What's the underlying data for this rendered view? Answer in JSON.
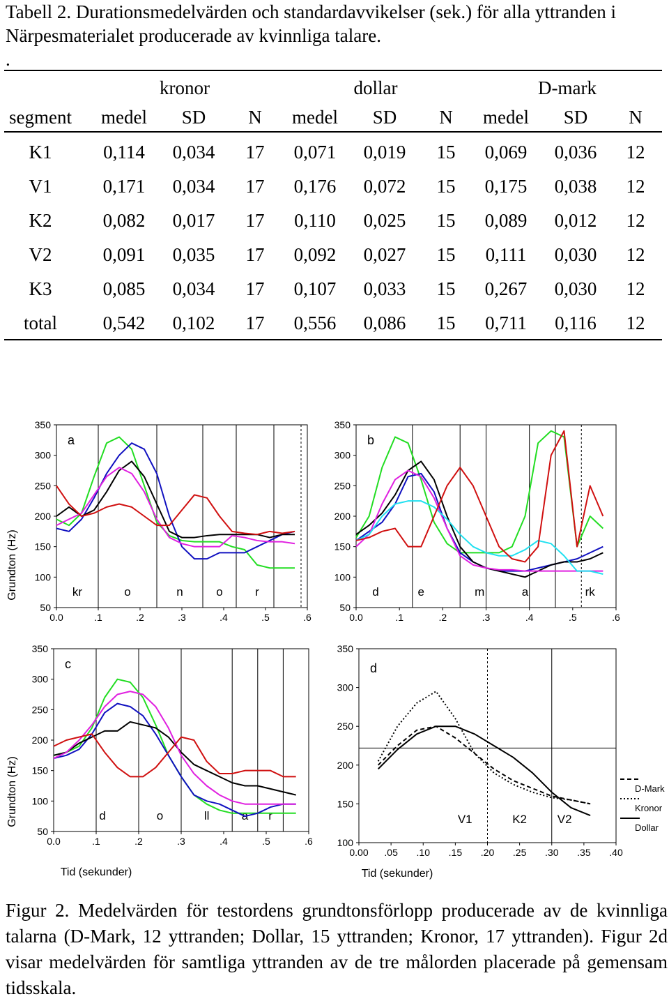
{
  "table_caption": "Tabell 2. Durationsmedelvärden och standardavvikelser (sek.) för alla yttranden i Närpesmaterialet producerade av kvinnliga talare.",
  "table_mark": ".",
  "table": {
    "groups": [
      "kronor",
      "dollar",
      "D-mark"
    ],
    "columns": [
      "segment",
      "medel",
      "SD",
      "N",
      "medel",
      "SD",
      "N",
      "medel",
      "SD",
      "N"
    ],
    "rows": [
      [
        "K1",
        "0,114",
        "0,034",
        "17",
        "0,071",
        "0,019",
        "15",
        "0,069",
        "0,036",
        "12"
      ],
      [
        "V1",
        "0,171",
        "0,034",
        "17",
        "0,176",
        "0,072",
        "15",
        "0,175",
        "0,038",
        "12"
      ],
      [
        "K2",
        "0,082",
        "0,017",
        "17",
        "0,110",
        "0,025",
        "15",
        "0,089",
        "0,012",
        "12"
      ],
      [
        "V2",
        "0,091",
        "0,035",
        "17",
        "0,092",
        "0,027",
        "15",
        "0,111",
        "0,030",
        "12"
      ],
      [
        "K3",
        "0,085",
        "0,034",
        "17",
        "0,107",
        "0,033",
        "15",
        "0,267",
        "0,030",
        "12"
      ],
      [
        "total",
        "0,542",
        "0,102",
        "17",
        "0,556",
        "0,086",
        "15",
        "0,711",
        "0,116",
        "12"
      ]
    ]
  },
  "figure": {
    "ylabel": "Grundton (Hz)",
    "xlabel": "Tid (sekunder)",
    "yticks": [
      "350",
      "300",
      "250",
      "200",
      "150",
      "100",
      "50"
    ],
    "yticks_d": [
      "350",
      "300",
      "250",
      "200",
      "150",
      "100"
    ],
    "xticks": [
      "0.0",
      ".1",
      ".2",
      ".3",
      ".4",
      ".5",
      ".6"
    ],
    "xticks_d": [
      "0.00",
      ".05",
      ".10",
      ".15",
      ".20",
      ".25",
      ".30",
      ".35",
      ".40"
    ],
    "panels": [
      {
        "label": "a",
        "segments": [
          "kr",
          "o",
          "n",
          "o",
          "r"
        ]
      },
      {
        "label": "b",
        "segments": [
          "d",
          "e",
          "m",
          "a",
          "rk"
        ]
      },
      {
        "label": "c",
        "segments": [
          "d",
          "o",
          "ll",
          "a",
          "r"
        ]
      },
      {
        "label": "d",
        "segments": [
          "V1",
          "K2",
          "V2"
        ]
      }
    ],
    "legend": [
      "D-Mark",
      "Kronor",
      "Dollar"
    ],
    "colors": {
      "green": "#22dd22",
      "blue": "#1010c0",
      "black": "#000000",
      "magenta": "#e020e0",
      "red": "#d01010",
      "cyan": "#20e0f0"
    }
  },
  "figure_caption": "Figur 2. Medelvärden för testordens grundtonsförlopp producerade av de kvinnliga talarna (D-Mark, 12 yttranden; Dollar, 15 yttranden; Kronor, 17 yttranden). Figur 2d visar medelvärden för samtliga yttranden av de tre målorden placerade på gemensam tidsskala.",
  "chart_data": [
    {
      "type": "line",
      "title": "a",
      "xlabel": "",
      "ylabel": "Grundton (Hz)",
      "xlim": [
        0.0,
        0.6
      ],
      "ylim": [
        50,
        350
      ],
      "boundaries": [
        0.1,
        0.24,
        0.35,
        0.43,
        0.52,
        0.585
      ],
      "series": [
        {
          "color": "#22dd22",
          "x": [
            0.0,
            0.03,
            0.06,
            0.09,
            0.12,
            0.15,
            0.18,
            0.21,
            0.24,
            0.27,
            0.3,
            0.33,
            0.36,
            0.39,
            0.42,
            0.45,
            0.48,
            0.51,
            0.54,
            0.57
          ],
          "y": [
            195,
            185,
            205,
            265,
            320,
            330,
            310,
            250,
            190,
            168,
            160,
            158,
            158,
            158,
            150,
            145,
            120,
            115,
            115,
            115
          ]
        },
        {
          "color": "#1010c0",
          "x": [
            0.0,
            0.03,
            0.06,
            0.09,
            0.12,
            0.15,
            0.18,
            0.21,
            0.24,
            0.27,
            0.3,
            0.33,
            0.36,
            0.39,
            0.42,
            0.45,
            0.48,
            0.51,
            0.54,
            0.57
          ],
          "y": [
            180,
            175,
            195,
            230,
            270,
            300,
            320,
            310,
            270,
            200,
            150,
            130,
            130,
            140,
            140,
            140,
            150,
            160,
            170,
            175
          ]
        },
        {
          "color": "#000000",
          "x": [
            0.0,
            0.03,
            0.06,
            0.09,
            0.12,
            0.15,
            0.18,
            0.21,
            0.24,
            0.27,
            0.3,
            0.33,
            0.36,
            0.39,
            0.42,
            0.45,
            0.48,
            0.51,
            0.54,
            0.57
          ],
          "y": [
            200,
            215,
            200,
            210,
            240,
            275,
            290,
            265,
            220,
            175,
            165,
            165,
            168,
            170,
            170,
            170,
            170,
            165,
            170,
            170
          ]
        },
        {
          "color": "#e020e0",
          "x": [
            0.0,
            0.03,
            0.06,
            0.09,
            0.12,
            0.15,
            0.18,
            0.21,
            0.24,
            0.27,
            0.3,
            0.33,
            0.36,
            0.39,
            0.42,
            0.45,
            0.48,
            0.51,
            0.54,
            0.57
          ],
          "y": [
            185,
            195,
            205,
            235,
            265,
            280,
            270,
            240,
            195,
            165,
            155,
            150,
            150,
            150,
            168,
            165,
            160,
            158,
            158,
            155
          ]
        },
        {
          "color": "#d01010",
          "x": [
            0.0,
            0.03,
            0.06,
            0.09,
            0.12,
            0.15,
            0.18,
            0.21,
            0.24,
            0.27,
            0.3,
            0.33,
            0.36,
            0.39,
            0.42,
            0.45,
            0.48,
            0.51,
            0.54,
            0.57
          ],
          "y": [
            250,
            220,
            200,
            205,
            215,
            220,
            215,
            200,
            185,
            185,
            210,
            235,
            230,
            200,
            175,
            172,
            170,
            175,
            172,
            175
          ]
        }
      ]
    },
    {
      "type": "line",
      "title": "b",
      "xlabel": "",
      "ylabel": "",
      "xlim": [
        0.0,
        0.6
      ],
      "ylim": [
        50,
        350
      ],
      "boundaries": [
        0.13,
        0.24,
        0.3,
        0.4,
        0.46,
        0.52
      ],
      "series": [
        {
          "color": "#22dd22",
          "x": [
            0.0,
            0.03,
            0.06,
            0.09,
            0.12,
            0.15,
            0.18,
            0.21,
            0.24,
            0.27,
            0.3,
            0.33,
            0.36,
            0.39,
            0.42,
            0.45,
            0.48,
            0.51,
            0.54,
            0.57
          ],
          "y": [
            165,
            200,
            280,
            330,
            320,
            260,
            190,
            155,
            140,
            140,
            140,
            140,
            150,
            200,
            320,
            340,
            330,
            150,
            200,
            180
          ]
        },
        {
          "color": "#1010c0",
          "x": [
            0.0,
            0.03,
            0.06,
            0.09,
            0.12,
            0.15,
            0.18,
            0.21,
            0.24,
            0.27,
            0.3,
            0.33,
            0.36,
            0.39,
            0.42,
            0.45,
            0.48,
            0.51,
            0.54,
            0.57
          ],
          "y": [
            160,
            175,
            190,
            220,
            265,
            270,
            240,
            180,
            140,
            125,
            115,
            110,
            110,
            110,
            115,
            120,
            125,
            130,
            140,
            150
          ]
        },
        {
          "color": "#000000",
          "x": [
            0.0,
            0.03,
            0.06,
            0.09,
            0.12,
            0.15,
            0.18,
            0.21,
            0.24,
            0.27,
            0.3,
            0.33,
            0.36,
            0.39,
            0.42,
            0.45,
            0.48,
            0.51,
            0.54,
            0.57
          ],
          "y": [
            170,
            185,
            205,
            235,
            275,
            290,
            260,
            200,
            150,
            125,
            115,
            110,
            105,
            100,
            110,
            120,
            125,
            125,
            130,
            140
          ]
        },
        {
          "color": "#e020e0",
          "x": [
            0.0,
            0.03,
            0.06,
            0.09,
            0.12,
            0.15,
            0.18,
            0.21,
            0.24,
            0.27,
            0.3,
            0.33,
            0.36,
            0.39,
            0.42,
            0.45,
            0.48,
            0.51,
            0.54,
            0.57
          ],
          "y": [
            150,
            170,
            220,
            260,
            275,
            265,
            230,
            180,
            135,
            120,
            115,
            112,
            112,
            110,
            110,
            110,
            110,
            110,
            110,
            110
          ]
        },
        {
          "color": "#20e0f0",
          "x": [
            0.0,
            0.03,
            0.06,
            0.09,
            0.12,
            0.15,
            0.18,
            0.21,
            0.24,
            0.27,
            0.3,
            0.33,
            0.36,
            0.39,
            0.42,
            0.45,
            0.48,
            0.51,
            0.54,
            0.57
          ],
          "y": [
            160,
            170,
            200,
            220,
            225,
            225,
            215,
            195,
            170,
            150,
            140,
            135,
            135,
            145,
            160,
            155,
            135,
            110,
            110,
            105
          ]
        },
        {
          "color": "#d01010",
          "x": [
            0.0,
            0.03,
            0.06,
            0.09,
            0.12,
            0.15,
            0.18,
            0.21,
            0.24,
            0.27,
            0.3,
            0.33,
            0.36,
            0.39,
            0.42,
            0.45,
            0.48,
            0.51,
            0.54,
            0.57
          ],
          "y": [
            160,
            165,
            175,
            180,
            150,
            150,
            200,
            250,
            280,
            250,
            200,
            150,
            130,
            125,
            150,
            300,
            340,
            150,
            250,
            200
          ]
        }
      ]
    },
    {
      "type": "line",
      "title": "c",
      "xlabel": "Tid (sekunder)",
      "ylabel": "Grundton (Hz)",
      "xlim": [
        0.0,
        0.6
      ],
      "ylim": [
        50,
        350
      ],
      "boundaries": [
        0.1,
        0.2,
        0.3,
        0.42,
        0.48,
        0.54
      ],
      "series": [
        {
          "color": "#22dd22",
          "x": [
            0.0,
            0.03,
            0.06,
            0.09,
            0.12,
            0.15,
            0.18,
            0.21,
            0.24,
            0.27,
            0.3,
            0.33,
            0.36,
            0.39,
            0.42,
            0.45,
            0.48,
            0.51,
            0.54,
            0.57
          ],
          "y": [
            175,
            180,
            190,
            220,
            270,
            300,
            295,
            270,
            225,
            175,
            140,
            110,
            95,
            85,
            80,
            80,
            80,
            80,
            80,
            80
          ]
        },
        {
          "color": "#1010c0",
          "x": [
            0.0,
            0.03,
            0.06,
            0.09,
            0.12,
            0.15,
            0.18,
            0.21,
            0.24,
            0.27,
            0.3,
            0.33,
            0.36,
            0.39,
            0.42,
            0.45,
            0.48,
            0.51,
            0.54,
            0.57
          ],
          "y": [
            170,
            175,
            185,
            210,
            245,
            260,
            255,
            240,
            210,
            175,
            140,
            110,
            100,
            95,
            85,
            75,
            80,
            90,
            95,
            95
          ]
        },
        {
          "color": "#000000",
          "x": [
            0.0,
            0.03,
            0.06,
            0.09,
            0.12,
            0.15,
            0.18,
            0.21,
            0.24,
            0.27,
            0.3,
            0.33,
            0.36,
            0.39,
            0.42,
            0.45,
            0.48,
            0.51,
            0.54,
            0.57
          ],
          "y": [
            175,
            180,
            195,
            205,
            215,
            215,
            230,
            225,
            220,
            205,
            180,
            160,
            150,
            140,
            130,
            125,
            125,
            120,
            115,
            110
          ]
        },
        {
          "color": "#e020e0",
          "x": [
            0.0,
            0.03,
            0.06,
            0.09,
            0.12,
            0.15,
            0.18,
            0.21,
            0.24,
            0.27,
            0.3,
            0.33,
            0.36,
            0.39,
            0.42,
            0.45,
            0.48,
            0.51,
            0.54,
            0.57
          ],
          "y": [
            170,
            180,
            200,
            225,
            255,
            275,
            280,
            275,
            255,
            220,
            175,
            145,
            125,
            110,
            100,
            95,
            95,
            95,
            95,
            95
          ]
        },
        {
          "color": "#d01010",
          "x": [
            0.0,
            0.03,
            0.06,
            0.09,
            0.12,
            0.15,
            0.18,
            0.21,
            0.24,
            0.27,
            0.3,
            0.33,
            0.36,
            0.39,
            0.42,
            0.45,
            0.48,
            0.51,
            0.54,
            0.57
          ],
          "y": [
            190,
            200,
            205,
            210,
            180,
            155,
            140,
            140,
            155,
            180,
            205,
            200,
            165,
            145,
            145,
            150,
            150,
            150,
            140,
            140
          ]
        }
      ]
    },
    {
      "type": "line",
      "title": "d",
      "xlabel": "Tid (sekunder)",
      "ylabel": "",
      "xlim": [
        0.0,
        0.4
      ],
      "ylim": [
        100,
        350
      ],
      "boundaries": [
        0.2,
        0.3
      ],
      "series": [
        {
          "name": "D-Mark",
          "dash": "dashed",
          "x": [
            0.03,
            0.06,
            0.09,
            0.12,
            0.15,
            0.18,
            0.21,
            0.24,
            0.27,
            0.3,
            0.33,
            0.36
          ],
          "y": [
            200,
            225,
            245,
            250,
            235,
            215,
            195,
            180,
            170,
            160,
            155,
            150
          ]
        },
        {
          "name": "Kronor",
          "dash": "dotted",
          "x": [
            0.03,
            0.06,
            0.09,
            0.12,
            0.15,
            0.18,
            0.21,
            0.24,
            0.27,
            0.3,
            0.33,
            0.36
          ],
          "y": [
            205,
            250,
            280,
            295,
            260,
            215,
            190,
            175,
            165,
            158,
            155,
            150
          ]
        },
        {
          "name": "Dollar",
          "dash": "solid",
          "x": [
            0.03,
            0.06,
            0.09,
            0.12,
            0.15,
            0.18,
            0.21,
            0.24,
            0.27,
            0.3,
            0.33,
            0.36
          ],
          "y": [
            195,
            220,
            240,
            250,
            250,
            240,
            225,
            210,
            190,
            165,
            145,
            135
          ]
        }
      ]
    }
  ]
}
